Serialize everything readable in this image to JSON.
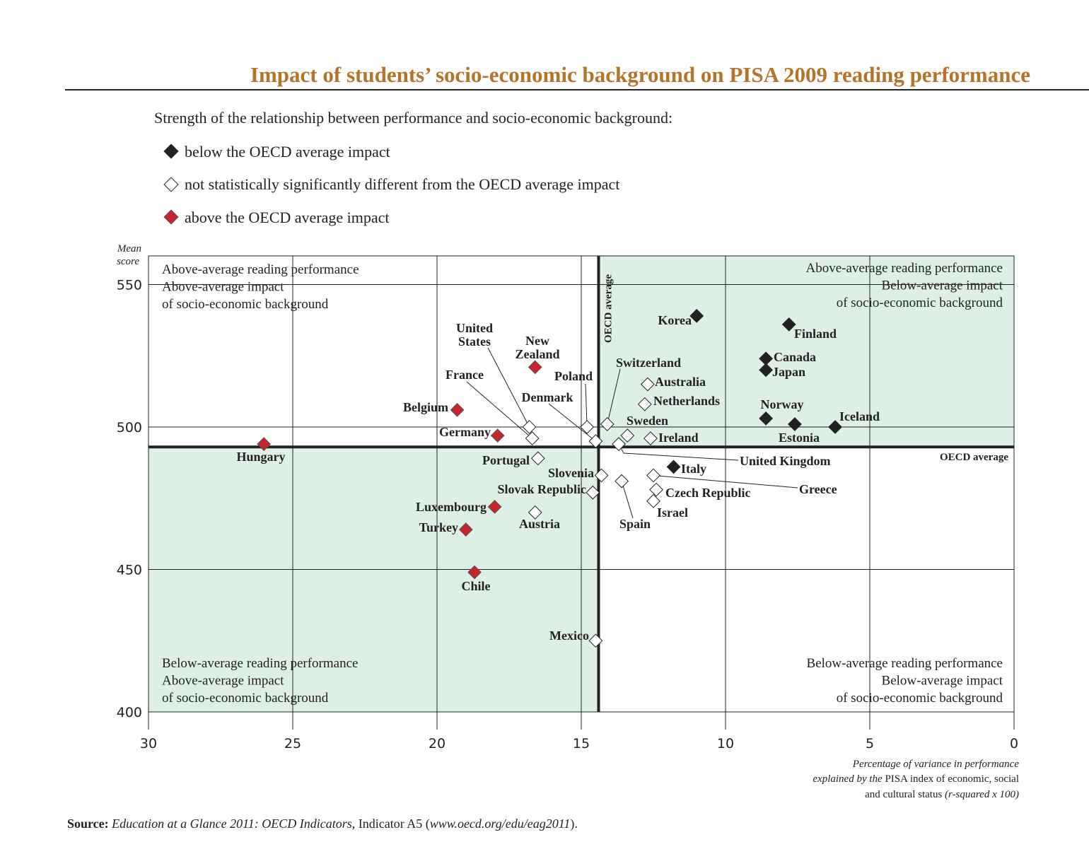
{
  "title": "Impact of students’ socio-economic background on PISA 2009 reading performance",
  "legend": {
    "heading": "Strength of the relationship between performance and socio-economic background:",
    "items": [
      {
        "label": "below the OECD average impact",
        "color": "#222222"
      },
      {
        "label": "not statistically significantly different from the OECD average impact",
        "color": "#ffffff"
      },
      {
        "label": "above the OECD average impact",
        "color": "#c8242b"
      }
    ]
  },
  "colors": {
    "title": "#b5742a",
    "quadrant_fill": "#deefe5",
    "above": "#c8242b",
    "below": "#222222",
    "not_sig": "#ffffff"
  },
  "quadrants": {
    "top_left": [
      "Above-average reading performance",
      "Above-average impact",
      "of socio-economic background"
    ],
    "top_right": [
      "Above-average reading performance",
      "Below-average impact",
      "of socio-economic background"
    ],
    "bottom_left": [
      "Below-average reading performance",
      "Above-average impact",
      "of socio-economic background"
    ],
    "bottom_right": [
      "Below-average reading performance",
      "Below-average impact",
      "of socio-economic background"
    ]
  },
  "source": {
    "bold": "Source:",
    "italic": "Education at a Glance 2011: OECD Indicators",
    "mid": ", Indicator A5 (",
    "url": "www.oecd.org/edu/eag2011",
    "end": ")."
  },
  "chart_data": {
    "type": "scatter",
    "ylabel": [
      "Mean",
      "score"
    ],
    "xlabel": {
      "line1": "Percentage of variance in performance",
      "line2_it": "explained by the",
      "line2": " PISA index of economic, social",
      "line3": "and cultural status ",
      "line3_it": "(r-squared x 100)"
    },
    "xlim": [
      30,
      0
    ],
    "ylim": [
      400,
      560
    ],
    "x_reversed": true,
    "xticks": [
      30,
      25,
      20,
      15,
      10,
      5,
      0
    ],
    "yticks": [
      400,
      450,
      500,
      550
    ],
    "grid": true,
    "oecd_average": {
      "x": 14.4,
      "y": 493,
      "x_label": "OECD average",
      "y_label": "OECD average"
    },
    "points": [
      {
        "name": "Korea",
        "x": 11.0,
        "y": 539,
        "group": "below"
      },
      {
        "name": "Finland",
        "x": 7.8,
        "y": 536,
        "group": "below"
      },
      {
        "name": "Canada",
        "x": 8.6,
        "y": 524,
        "group": "below"
      },
      {
        "name": "Japan",
        "x": 8.6,
        "y": 520,
        "group": "below"
      },
      {
        "name": "Norway",
        "x": 8.6,
        "y": 503,
        "group": "below"
      },
      {
        "name": "Estonia",
        "x": 7.6,
        "y": 501,
        "group": "below"
      },
      {
        "name": "Iceland",
        "x": 6.2,
        "y": 500,
        "group": "below"
      },
      {
        "name": "Italy",
        "x": 11.8,
        "y": 486,
        "group": "below"
      },
      {
        "name": "Hungary",
        "x": 26.0,
        "y": 494,
        "group": "above"
      },
      {
        "name": "Belgium",
        "x": 19.3,
        "y": 506,
        "group": "above"
      },
      {
        "name": "Germany",
        "x": 17.9,
        "y": 497,
        "group": "above"
      },
      {
        "name": "New Zealand",
        "x": 16.6,
        "y": 521,
        "group": "above"
      },
      {
        "name": "Luxembourg",
        "x": 18.0,
        "y": 472,
        "group": "above"
      },
      {
        "name": "Turkey",
        "x": 19.0,
        "y": 464,
        "group": "above"
      },
      {
        "name": "Chile",
        "x": 18.7,
        "y": 449,
        "group": "above"
      },
      {
        "name": "United States",
        "x": 16.8,
        "y": 500,
        "group": "not_sig"
      },
      {
        "name": "France",
        "x": 16.7,
        "y": 496,
        "group": "not_sig"
      },
      {
        "name": "Portugal",
        "x": 16.5,
        "y": 489,
        "group": "not_sig"
      },
      {
        "name": "Austria",
        "x": 16.6,
        "y": 470,
        "group": "not_sig"
      },
      {
        "name": "Poland",
        "x": 14.8,
        "y": 500,
        "group": "not_sig"
      },
      {
        "name": "Denmark",
        "x": 14.5,
        "y": 495,
        "group": "not_sig"
      },
      {
        "name": "Switzerland",
        "x": 14.1,
        "y": 501,
        "group": "not_sig"
      },
      {
        "name": "Slovenia",
        "x": 14.3,
        "y": 483,
        "group": "not_sig"
      },
      {
        "name": "Slovak Republic",
        "x": 14.6,
        "y": 477,
        "group": "not_sig"
      },
      {
        "name": "Mexico",
        "x": 14.5,
        "y": 425,
        "group": "not_sig"
      },
      {
        "name": "Australia",
        "x": 12.7,
        "y": 515,
        "group": "not_sig"
      },
      {
        "name": "Netherlands",
        "x": 12.8,
        "y": 508,
        "group": "not_sig"
      },
      {
        "name": "Sweden",
        "x": 13.4,
        "y": 497,
        "group": "not_sig"
      },
      {
        "name": "Ireland",
        "x": 12.6,
        "y": 496,
        "group": "not_sig"
      },
      {
        "name": "United Kingdom",
        "x": 13.7,
        "y": 494,
        "group": "not_sig"
      },
      {
        "name": "Spain",
        "x": 13.6,
        "y": 481,
        "group": "not_sig"
      },
      {
        "name": "Greece",
        "x": 12.5,
        "y": 483,
        "group": "not_sig"
      },
      {
        "name": "Czech Republic",
        "x": 12.4,
        "y": 478,
        "group": "not_sig"
      },
      {
        "name": "Israel",
        "x": 12.5,
        "y": 474,
        "group": "not_sig"
      }
    ]
  }
}
